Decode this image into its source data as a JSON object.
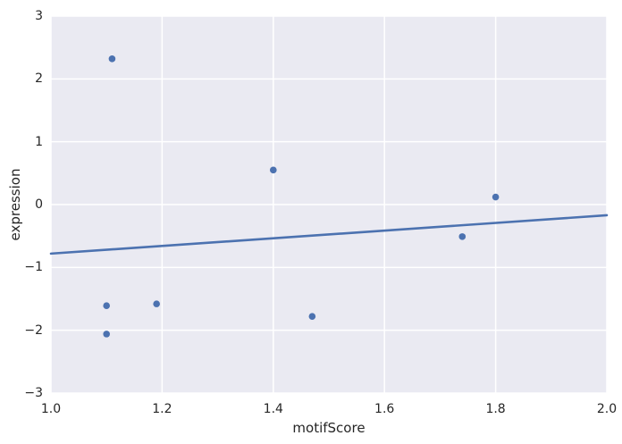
{
  "chart_data": {
    "type": "scatter",
    "title": "",
    "xlabel": "motifScore",
    "ylabel": "expression",
    "xlim": [
      1.0,
      2.0
    ],
    "ylim": [
      -3,
      3
    ],
    "grid": true,
    "legend": false,
    "x_ticks": [
      1.0,
      1.2,
      1.4,
      1.6,
      1.8,
      2.0
    ],
    "x_tick_labels": [
      "1.0",
      "1.2",
      "1.4",
      "1.6",
      "1.8",
      "2.0"
    ],
    "y_ticks": [
      3,
      2,
      1,
      0,
      -1,
      -2,
      -3
    ],
    "y_tick_labels": [
      "3",
      "2",
      "1",
      "0",
      "−1",
      "−2",
      "−3"
    ],
    "points": [
      {
        "x": 1.11,
        "y": 2.32
      },
      {
        "x": 1.4,
        "y": 0.55
      },
      {
        "x": 1.8,
        "y": 0.12
      },
      {
        "x": 1.74,
        "y": -0.51
      },
      {
        "x": 1.47,
        "y": -1.78
      },
      {
        "x": 1.1,
        "y": -1.61
      },
      {
        "x": 1.19,
        "y": -1.58
      },
      {
        "x": 1.1,
        "y": -2.06
      }
    ],
    "regression_line": {
      "x_start": 1.0,
      "y_start": -0.78,
      "x_end": 2.0,
      "y_end": -0.17
    },
    "style": {
      "figure_bg": "#FFFFFF",
      "plot_bg": "#EAEAF2",
      "grid_color": "#FFFFFF",
      "point_color": "#4C72B0",
      "line_color": "#4C72B0",
      "text_color": "#262626"
    }
  }
}
